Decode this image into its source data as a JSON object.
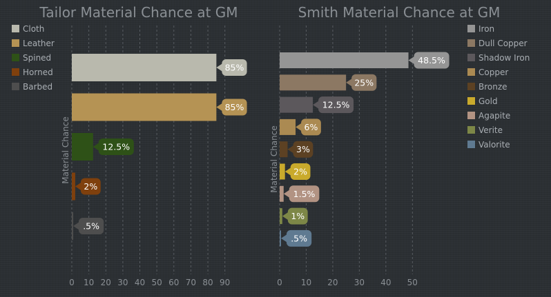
{
  "chart_data": [
    {
      "type": "bar",
      "orientation": "horizontal",
      "title": "Tailor Material Chance at GM",
      "xlabel": "",
      "ylabel": "Material Chance",
      "xlim": [
        0,
        95
      ],
      "xticks": [
        "0",
        "10",
        "20",
        "30",
        "40",
        "50",
        "60",
        "70",
        "80",
        "90"
      ],
      "grid": true,
      "legend_position": "top-left",
      "categories": [
        "Cloth",
        "Leather",
        "Spined",
        "Horned",
        "Barbed"
      ],
      "values": [
        85,
        85,
        12.5,
        2,
        0.5
      ],
      "data_labels": [
        "85%",
        "85%",
        "12.5%",
        "2%",
        ".5%"
      ],
      "colors": [
        "#b9b9ad",
        "#b59354",
        "#2e5117",
        "#7f400d",
        "#4e4e4e"
      ]
    },
    {
      "type": "bar",
      "orientation": "horizontal",
      "title": "Smith Material Chance at GM",
      "xlabel": "",
      "ylabel": "Material Chance",
      "xlim": [
        0,
        52
      ],
      "xticks": [
        "0",
        "10",
        "20",
        "30",
        "40",
        "50"
      ],
      "grid": true,
      "legend_position": "top-right",
      "categories": [
        "Iron",
        "Dull Copper",
        "Shadow Iron",
        "Copper",
        "Bronze",
        "Gold",
        "Agapite",
        "Verite",
        "Valorite"
      ],
      "values": [
        48.5,
        25,
        12.5,
        6,
        3,
        2,
        1.5,
        1,
        0.5
      ],
      "data_labels": [
        "48.5%",
        "25%",
        "12.5%",
        "6%",
        "3%",
        "2%",
        "1.5%",
        "1%",
        ".5%"
      ],
      "colors": [
        "#959595",
        "#8c7863",
        "#5c585c",
        "#ab8a52",
        "#5c4123",
        "#c9aa2c",
        "#b29383",
        "#7d8747",
        "#5f7a91"
      ]
    }
  ]
}
